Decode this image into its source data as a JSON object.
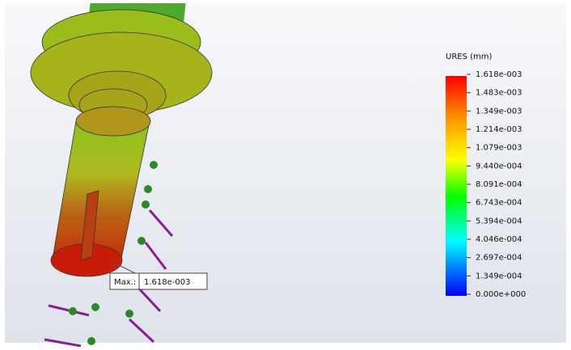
{
  "legend": {
    "title": "URES (mm)",
    "labels": [
      "1.618e-003",
      "1.483e-003",
      "1.349e-003",
      "1.214e-003",
      "1.079e-003",
      "9.440e-004",
      "8.091e-004",
      "6.743e-004",
      "5.394e-004",
      "4.046e-004",
      "2.697e-004",
      "1.349e-004",
      "0.000e+000"
    ]
  },
  "annotation": {
    "label": "Max.:",
    "value": "1.618e-003"
  }
}
